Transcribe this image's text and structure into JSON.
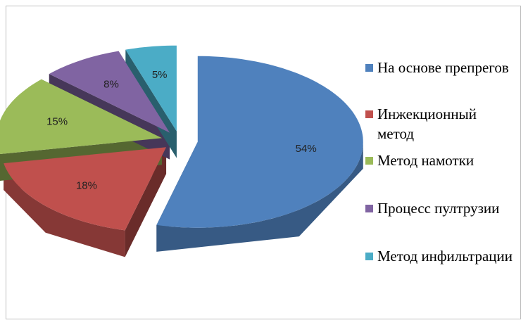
{
  "chart_data": {
    "type": "pie3d",
    "categories": [
      "На основе препрегов",
      "Инжекционный метод",
      "Метод намотки",
      "Процесс пултрузии",
      "Метод инфильтрации"
    ],
    "values": [
      54,
      18,
      15,
      8,
      5
    ],
    "value_labels": [
      "54%",
      "18%",
      "15%",
      "8%",
      "5%"
    ],
    "colors": [
      "#4f81bd",
      "#c0504d",
      "#9bbb59",
      "#8064a2",
      "#4bacc6"
    ],
    "legend": "right"
  }
}
